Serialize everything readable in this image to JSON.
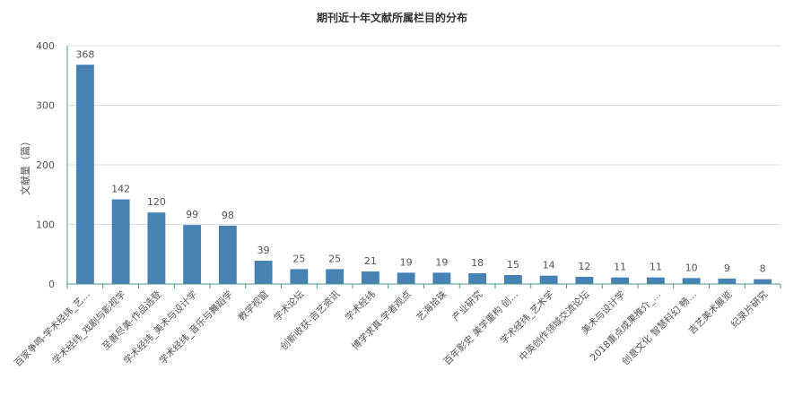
{
  "chart_data": {
    "type": "bar",
    "title": "期刊近十年文献所属栏目的分布",
    "xlabel": "",
    "ylabel": "文献量（篇）",
    "ylim": [
      0,
      400
    ],
    "yticks": [
      0,
      100,
      200,
      300,
      400
    ],
    "grid": true,
    "bar_color": "#4682b4",
    "categories": [
      "百家争鸣-学术经纬_艺…",
      "学术经纬_戏剧与影视学",
      "至善尽美-作品选登",
      "学术经纬_美术与设计学",
      "学术经纬_音乐与舞蹈学",
      "教学视窗",
      "学术论坛",
      "创新收获-吉艺资讯",
      "学术经纬",
      "博学求真-学者观点",
      "艺海拾珠",
      "产业研究",
      "百年影史 美学重构 创…",
      "学术经纬_艺术学",
      "中英创作领域交流论坛",
      "美术与设计学",
      "2018重点成果推介_…",
      "创意文化 智慧科幻 畅…",
      "吉艺美术展览",
      "纪录片研究"
    ],
    "values": [
      368,
      142,
      120,
      99,
      98,
      39,
      25,
      25,
      21,
      19,
      19,
      18,
      15,
      14,
      12,
      11,
      11,
      10,
      9,
      8
    ]
  }
}
